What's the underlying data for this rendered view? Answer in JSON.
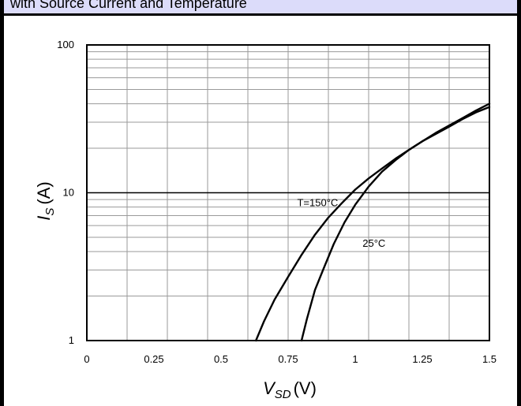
{
  "header": {
    "text": "with Source Current and Temperature"
  },
  "chart_data": {
    "type": "line",
    "title": "",
    "xlabel": {
      "main": "V",
      "sub": "SD",
      "unit": "(V)"
    },
    "ylabel": {
      "main": "I",
      "sub": "S",
      "unit": "(A)"
    },
    "xlim": [
      0,
      1.5
    ],
    "ylim": [
      1,
      100
    ],
    "yscale": "log",
    "grid": true,
    "x_ticks": [
      0,
      0.25,
      0.5,
      0.75,
      1,
      1.25,
      1.5
    ],
    "x_tick_labels": [
      "0",
      "0.25",
      "0.5",
      "0.75",
      "1",
      "1.25",
      "1.5"
    ],
    "y_ticks": [
      1,
      10,
      100
    ],
    "y_tick_labels": [
      "1",
      "10",
      "100"
    ],
    "series": [
      {
        "name": "T=150°C",
        "x": [
          0.63,
          0.66,
          0.7,
          0.75,
          0.8,
          0.85,
          0.9,
          0.95,
          1.0,
          1.05,
          1.1,
          1.15,
          1.2,
          1.25,
          1.3,
          1.35,
          1.4,
          1.45,
          1.5
        ],
        "y": [
          1.0,
          1.35,
          1.9,
          2.7,
          3.8,
          5.2,
          6.8,
          8.5,
          10.5,
          12.5,
          14.6,
          17.0,
          19.5,
          22.3,
          25.0,
          28.0,
          31.5,
          35.0,
          38.0
        ]
      },
      {
        "name": "25°C",
        "x": [
          0.8,
          0.82,
          0.85,
          0.88,
          0.92,
          0.96,
          1.0,
          1.05,
          1.1,
          1.15,
          1.2,
          1.25,
          1.3,
          1.35,
          1.4,
          1.45,
          1.5
        ],
        "y": [
          1.0,
          1.4,
          2.2,
          3.0,
          4.5,
          6.3,
          8.3,
          11.0,
          13.9,
          16.6,
          19.5,
          22.3,
          25.4,
          28.5,
          32.0,
          36.0,
          40.0
        ]
      }
    ],
    "annotations": [
      {
        "text": "T=150°C",
        "x": 0.86,
        "y": 8.1
      },
      {
        "text": "25°C",
        "x": 1.07,
        "y": 4.3
      }
    ]
  }
}
